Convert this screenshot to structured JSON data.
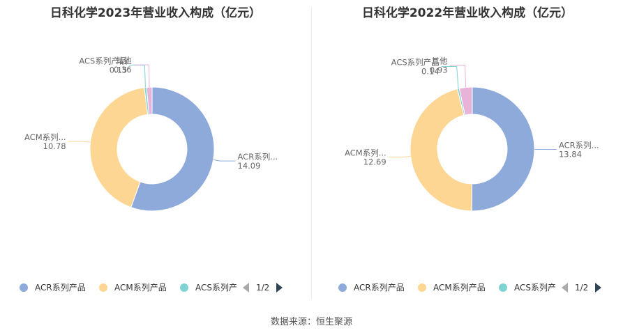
{
  "source_text": "数据来源：恒生聚源",
  "chart_data": [
    {
      "type": "pie",
      "title": "日科化学2023年营业收入构成（亿元）",
      "slices": [
        {
          "name": "ACR系列产品",
          "short": "ACR系列...",
          "value": 14.09,
          "color": "#8eaadb"
        },
        {
          "name": "ACM系列产品",
          "short": "ACM系列...",
          "value": 10.78,
          "color": "#fdd694"
        },
        {
          "name": "ACS系列产品",
          "short": "ACS系列产品",
          "value": 0.15,
          "color": "#7fd3d2"
        },
        {
          "name": "其他",
          "short": "其他",
          "value": 0.36,
          "color": "#e8b3d9"
        }
      ],
      "legend": {
        "items": [
          {
            "label": "ACR系列产品",
            "color": "#8eaadb"
          },
          {
            "label": "ACM系列产品",
            "color": "#fdd694"
          },
          {
            "label": "ACS系列产",
            "color": "#7fd3d2"
          }
        ],
        "page": "1/2"
      }
    },
    {
      "type": "pie",
      "title": "日科化学2022年营业收入构成（亿元）",
      "slices": [
        {
          "name": "ACR系列产品",
          "short": "ACR系列...",
          "value": 13.84,
          "color": "#8eaadb"
        },
        {
          "name": "ACM系列产品",
          "short": "ACM系列...",
          "value": 12.69,
          "color": "#fdd694"
        },
        {
          "name": "ACS系列产品",
          "short": "ACS系列产品",
          "value": 0.14,
          "color": "#7fd3d2"
        },
        {
          "name": "其他",
          "short": "其他",
          "value": 0.93,
          "color": "#e8b3d9"
        }
      ],
      "legend": {
        "items": [
          {
            "label": "ACR系列产品",
            "color": "#8eaadb"
          },
          {
            "label": "ACM系列产品",
            "color": "#fdd694"
          },
          {
            "label": "ACS系列产",
            "color": "#7fd3d2"
          }
        ],
        "page": "1/2"
      }
    }
  ]
}
